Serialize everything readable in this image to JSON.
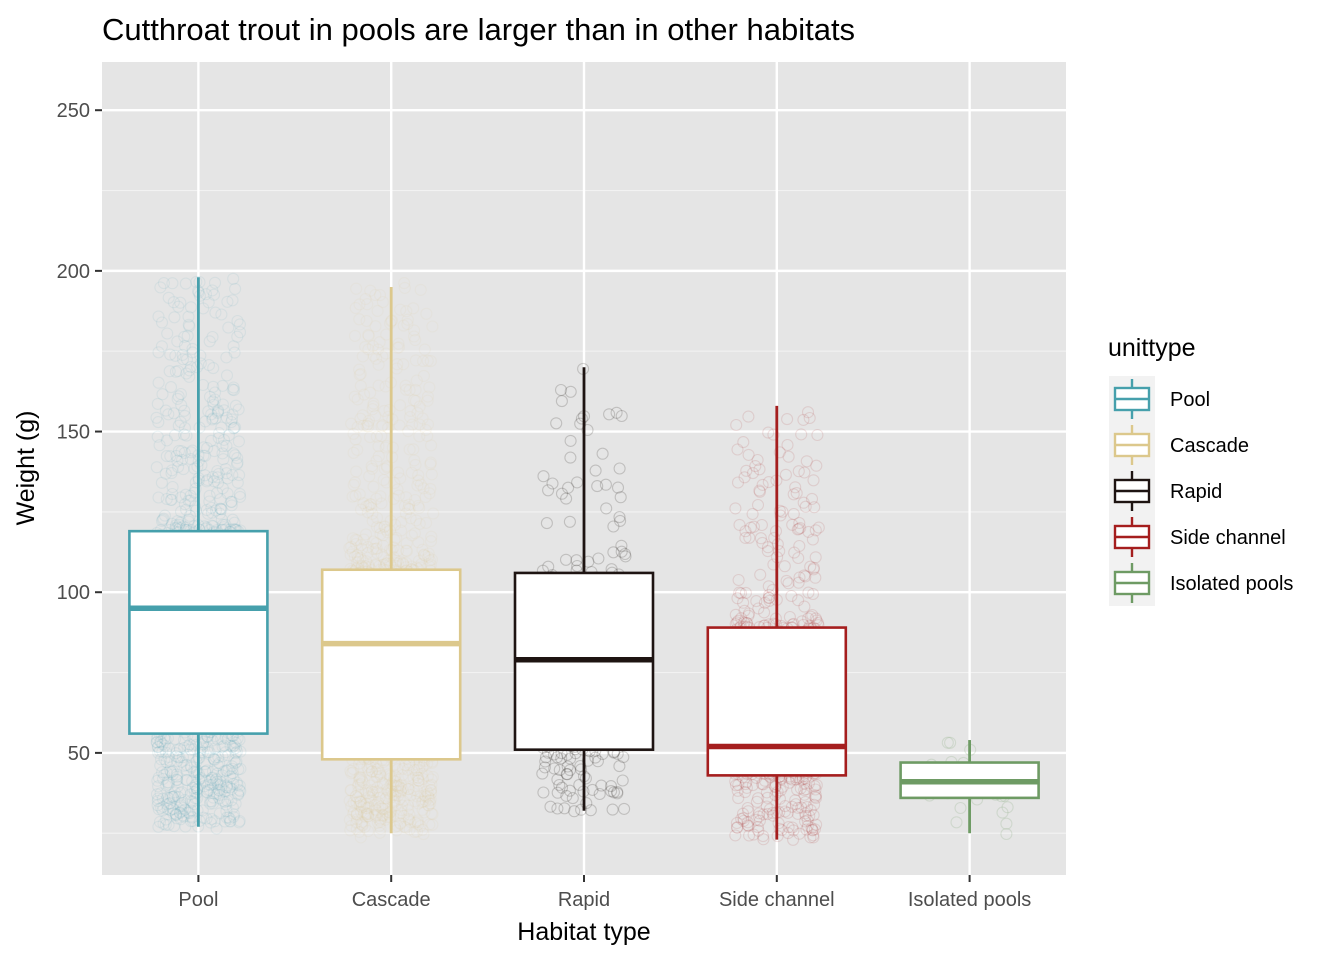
{
  "chart_data": {
    "type": "boxplot",
    "title": "Cutthroat trout in pools are larger than in other habitats",
    "xlabel": "Habitat type",
    "ylabel": "Weight (g)",
    "categories": [
      "Pool",
      "Cascade",
      "Rapid",
      "Side channel",
      "Isolated pools"
    ],
    "ylim": [
      12,
      265
    ],
    "yticks": [
      50,
      100,
      150,
      200,
      250
    ],
    "grid": true,
    "legend": {
      "title": "unittype",
      "position": "right",
      "entries": [
        "Pool",
        "Cascade",
        "Rapid",
        "Side channel",
        "Isolated pools"
      ]
    },
    "series": [
      {
        "name": "Pool",
        "color": "#46a0ac",
        "min": 27,
        "q1": 56,
        "median": 95,
        "q3": 119,
        "max": 198,
        "point_density": "high"
      },
      {
        "name": "Cascade",
        "color": "#dcc88c",
        "min": 25,
        "q1": 48,
        "median": 84,
        "q3": 107,
        "max": 195,
        "point_density": "high"
      },
      {
        "name": "Rapid",
        "color": "#1e1412",
        "min": 32,
        "q1": 51,
        "median": 79,
        "q3": 106,
        "max": 170,
        "point_density": "low"
      },
      {
        "name": "Side channel",
        "color": "#a51e1e",
        "min": 23,
        "q1": 43,
        "median": 52,
        "q3": 89,
        "max": 158,
        "point_density": "medium"
      },
      {
        "name": "Isolated pools",
        "color": "#6e9b64",
        "min": 25,
        "q1": 36,
        "median": 41,
        "q3": 47,
        "max": 54,
        "point_density": "very-low"
      }
    ]
  }
}
